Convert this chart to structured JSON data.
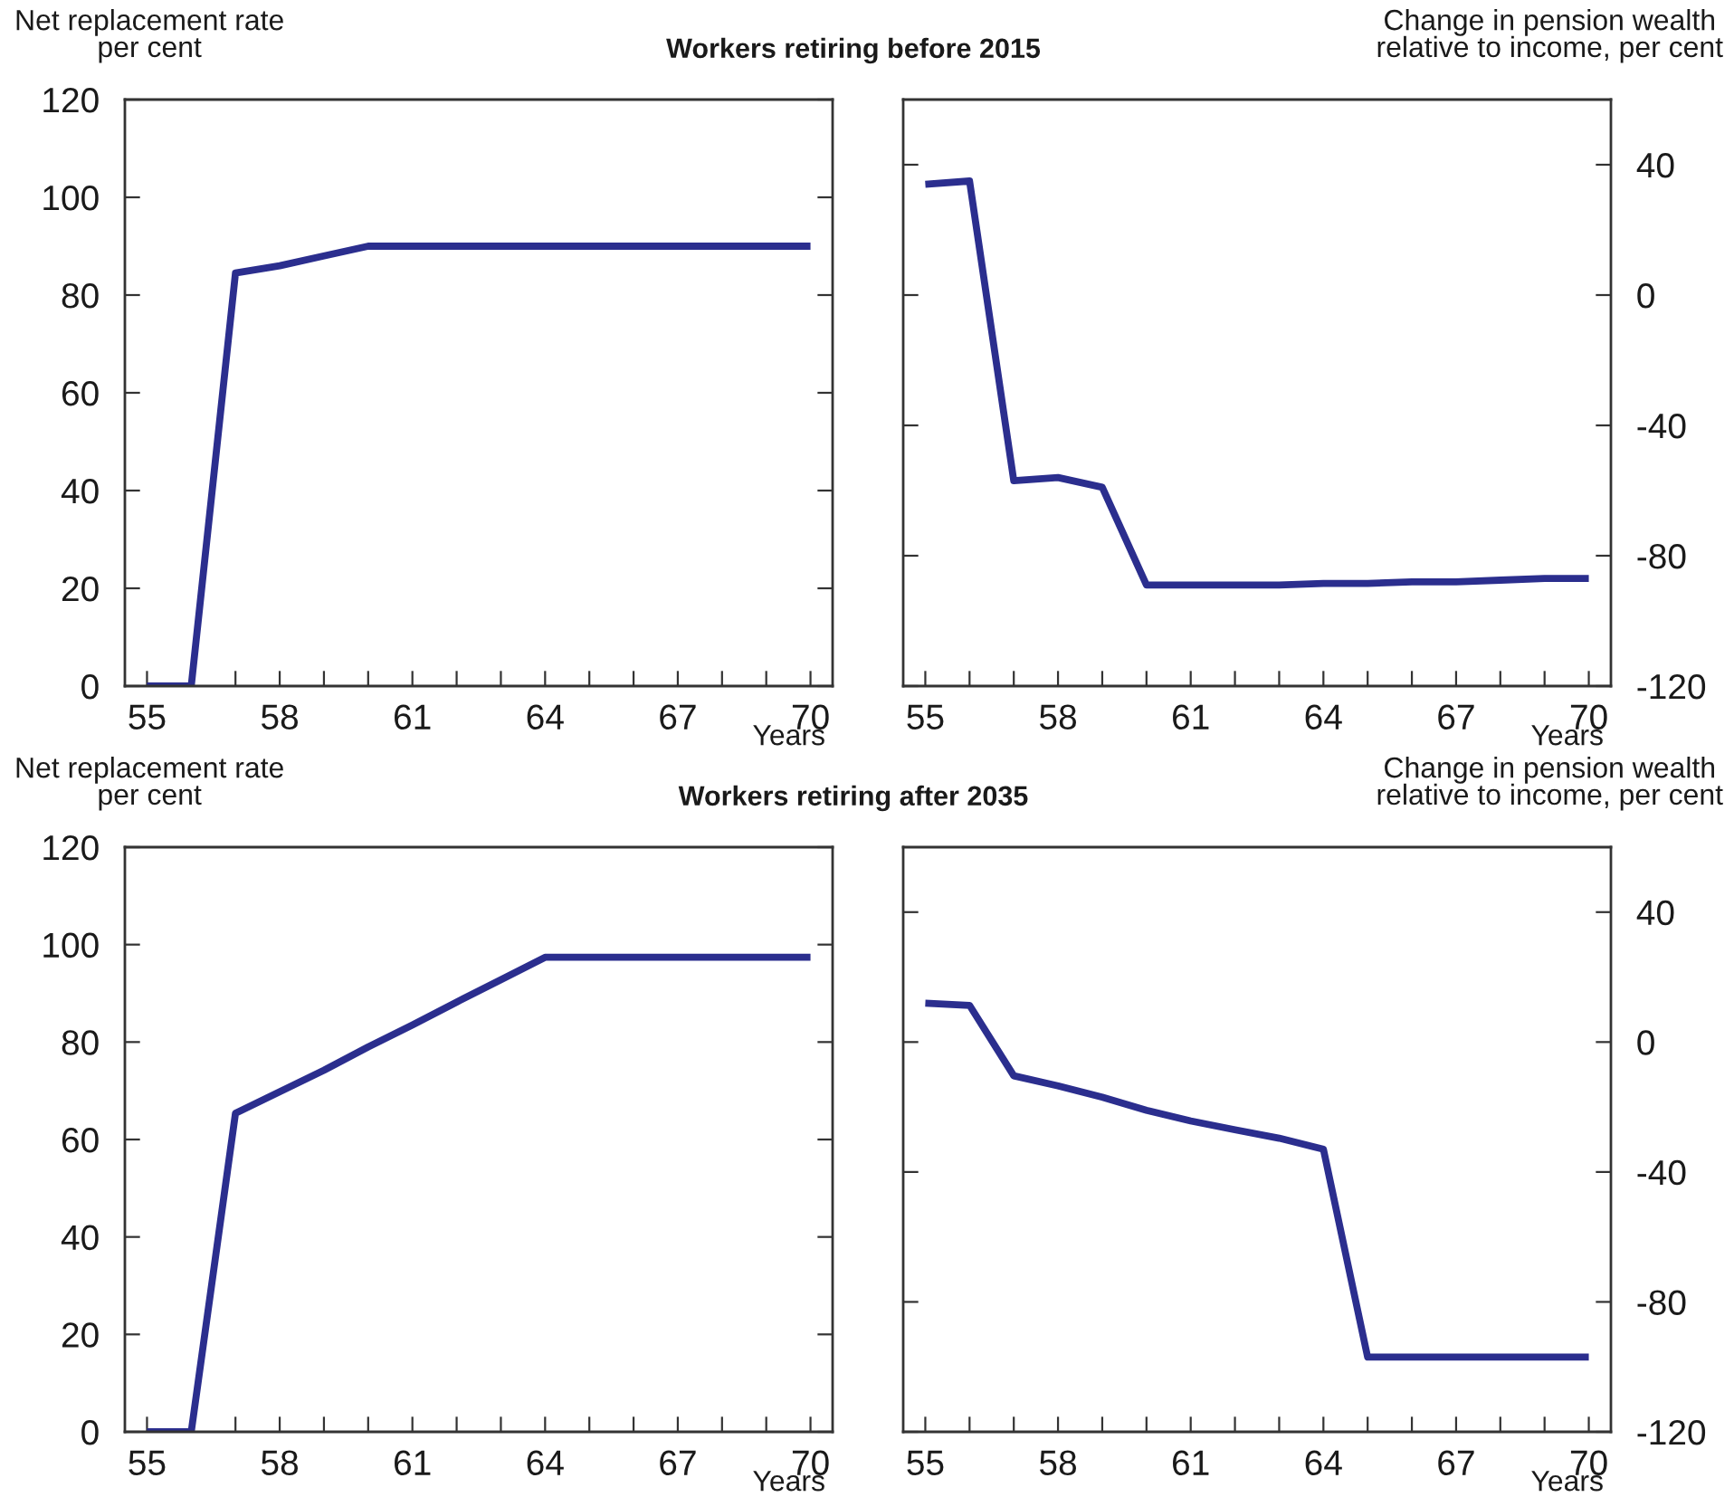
{
  "chart_data": [
    {
      "type": "line",
      "title": "Workers retiring before 2015",
      "ylabel": "Net replacement rate\nper cent",
      "xlabel": "Years",
      "x": [
        55,
        56,
        57,
        58,
        59,
        60,
        61,
        62,
        63,
        64,
        65,
        66,
        67,
        68,
        69,
        70
      ],
      "series": [
        {
          "color": "#2b2e8e",
          "values": [
            0,
            0,
            84.5,
            86,
            88,
            90,
            90,
            90,
            90,
            90,
            90,
            90,
            90,
            90,
            90,
            90
          ]
        }
      ],
      "xlim": [
        54.5,
        70.5
      ],
      "xticks": [
        55,
        {
          "value": 56,
          "label": null
        },
        {
          "value": 57,
          "label": null
        },
        58,
        {
          "value": 59,
          "label": null
        },
        {
          "value": 60,
          "label": null
        },
        61,
        {
          "value": 62,
          "label": null
        },
        {
          "value": 63,
          "label": null
        },
        64,
        {
          "value": 65,
          "label": null
        },
        {
          "value": 66,
          "label": null
        },
        67,
        {
          "value": 68,
          "label": null
        },
        {
          "value": 69,
          "label": null
        },
        70
      ],
      "ylim": [
        0,
        120
      ],
      "yticks": [
        0,
        20,
        40,
        60,
        80,
        100,
        120
      ],
      "grid": false
    },
    {
      "type": "line",
      "y2label": "Change in pension wealth\nrelative to income, per cent",
      "xlabel": "Years",
      "x": [
        55,
        56,
        57,
        58,
        59,
        60,
        61,
        62,
        63,
        64,
        65,
        66,
        67,
        68,
        69,
        70
      ],
      "series": [
        {
          "color": "#2b2e8e",
          "axis": "y2",
          "values": [
            34,
            35,
            -57,
            -56,
            -59,
            -89,
            -89,
            -89,
            -89,
            -88.5,
            -88.5,
            -88,
            -88,
            -87.5,
            -87,
            -87
          ]
        }
      ],
      "xlim": [
        54.5,
        70.5
      ],
      "xticks": [
        55,
        {
          "value": 56,
          "label": null
        },
        {
          "value": 57,
          "label": null
        },
        58,
        {
          "value": 59,
          "label": null
        },
        {
          "value": 60,
          "label": null
        },
        61,
        {
          "value": 62,
          "label": null
        },
        {
          "value": 63,
          "label": null
        },
        64,
        {
          "value": 65,
          "label": null
        },
        {
          "value": 66,
          "label": null
        },
        67,
        {
          "value": 68,
          "label": null
        },
        {
          "value": 69,
          "label": null
        },
        70
      ],
      "y2lim": [
        -120,
        60
      ],
      "y2ticks": [
        -120,
        -80,
        -40,
        0,
        40
      ],
      "grid": false
    },
    {
      "type": "line",
      "title": "Workers retiring after 2035",
      "ylabel": "Net replacement rate\nper cent",
      "xlabel": "Years",
      "x": [
        55,
        56,
        57,
        58,
        59,
        60,
        61,
        62,
        63,
        64,
        65,
        66,
        67,
        68,
        69,
        70
      ],
      "series": [
        {
          "color": "#2b2e8e",
          "values": [
            0,
            0,
            65.4,
            69.8,
            74.2,
            79,
            83.5,
            88.2,
            92.8,
            97.4,
            97.4,
            97.4,
            97.4,
            97.4,
            97.4,
            97.4
          ]
        }
      ],
      "xlim": [
        54.5,
        70.5
      ],
      "xticks": [
        55,
        {
          "value": 56,
          "label": null
        },
        {
          "value": 57,
          "label": null
        },
        58,
        {
          "value": 59,
          "label": null
        },
        {
          "value": 60,
          "label": null
        },
        61,
        {
          "value": 62,
          "label": null
        },
        {
          "value": 63,
          "label": null
        },
        64,
        {
          "value": 65,
          "label": null
        },
        {
          "value": 66,
          "label": null
        },
        67,
        {
          "value": 68,
          "label": null
        },
        {
          "value": 69,
          "label": null
        },
        70
      ],
      "ylim": [
        0,
        120
      ],
      "yticks": [
        0,
        20,
        40,
        60,
        80,
        100,
        120
      ],
      "grid": false
    },
    {
      "type": "line",
      "y2label": "Change in pension wealth\nrelative to income, per cent",
      "xlabel": "Years",
      "x": [
        55,
        56,
        57,
        58,
        59,
        60,
        61,
        62,
        63,
        64,
        65,
        66,
        67,
        68,
        69,
        70
      ],
      "series": [
        {
          "color": "#2b2e8e",
          "axis": "y2",
          "values": [
            12,
            11.3,
            -10.4,
            -13.5,
            -17,
            -21,
            -24.3,
            -27,
            -29.6,
            -33,
            -97,
            -97,
            -97,
            -97,
            -97,
            -97
          ]
        }
      ],
      "xlim": [
        54.5,
        70.5
      ],
      "xticks": [
        55,
        {
          "value": 56,
          "label": null
        },
        {
          "value": 57,
          "label": null
        },
        58,
        {
          "value": 59,
          "label": null
        },
        {
          "value": 60,
          "label": null
        },
        61,
        {
          "value": 62,
          "label": null
        },
        {
          "value": 63,
          "label": null
        },
        64,
        {
          "value": 65,
          "label": null
        },
        {
          "value": 66,
          "label": null
        },
        67,
        {
          "value": 68,
          "label": null
        },
        {
          "value": 69,
          "label": null
        },
        70
      ],
      "y2lim": [
        -120,
        60
      ],
      "y2ticks": [
        -120,
        -80,
        -40,
        0,
        40
      ],
      "grid": false
    }
  ]
}
